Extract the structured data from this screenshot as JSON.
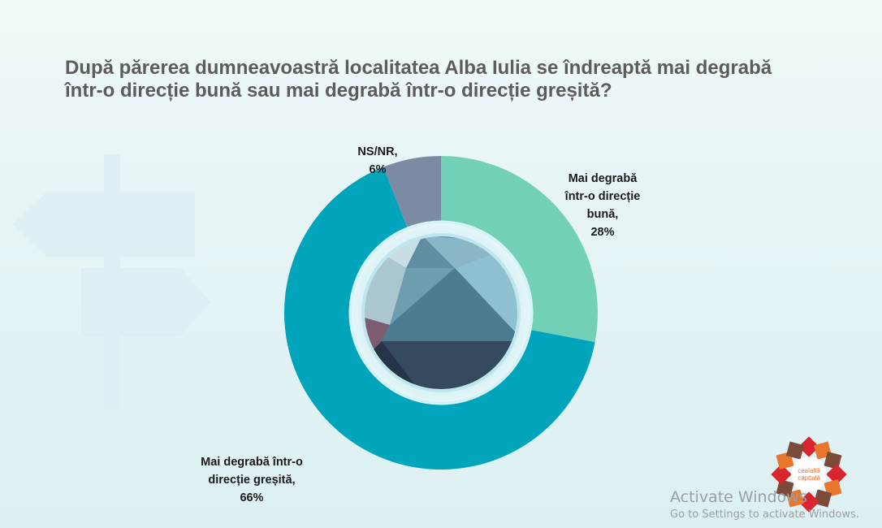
{
  "title": "După părerea dumneavoastră localitatea Alba Iulia se îndreaptă mai degrabă\nîntr-o direcție bună sau mai degrabă într-o direcție greșită?",
  "chart_data": {
    "type": "pie",
    "style": "donut",
    "title": "După părerea dumneavoastră localitatea Alba Iulia se îndreaptă mai degrabă într-o direcție bună sau mai degrabă într-o direcție greșită?",
    "unit": "%",
    "slices": [
      {
        "label": "Mai degrabă într-o direcție bună",
        "display_label": "Mai degrabă\nîntr-o direcție\nbună,",
        "value": 28,
        "value_text": "28%",
        "color": "#72d0b6"
      },
      {
        "label": "Mai degrabă într-o direcție greșită",
        "display_label": "Mai degrabă într-o\ndirecție greșită,",
        "value": 66,
        "value_text": "66%",
        "color": "#00a5bc"
      },
      {
        "label": "NS/NR",
        "display_label": "NS/NR,",
        "value": 6,
        "value_text": "6%",
        "color": "#7d8aa4"
      }
    ],
    "start": "12 o'clock",
    "direction": "clockwise"
  },
  "logo": {
    "text_line1": "cealaltă",
    "text_line2": "capitală",
    "colors": [
      "#d9262e",
      "#e8762d",
      "#7a4a3a"
    ]
  },
  "watermark": {
    "line1": "Activate Windows",
    "line2": "Go to Settings to activate Windows."
  }
}
